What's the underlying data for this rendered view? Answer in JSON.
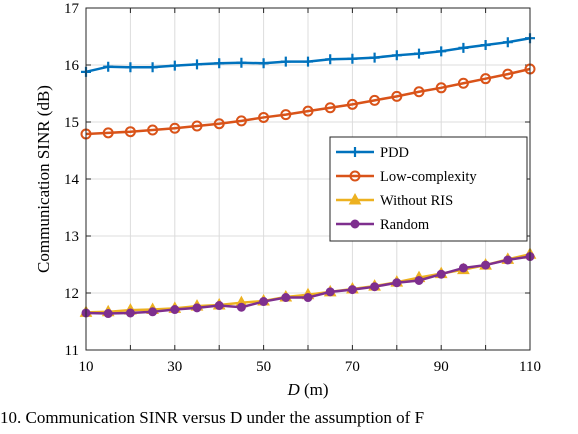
{
  "chart_data": {
    "type": "line",
    "xlabel_var": "D",
    "xlabel_unit": "(m)",
    "ylabel": "Communication SINR (dB)",
    "xlim": [
      10,
      110
    ],
    "ylim": [
      11,
      17
    ],
    "xticks": [
      10,
      30,
      50,
      70,
      90,
      110
    ],
    "yticks": [
      11,
      12,
      13,
      14,
      15,
      16,
      17
    ],
    "grid": true,
    "legend_position": "center-right",
    "x": [
      10,
      15,
      20,
      25,
      30,
      35,
      40,
      45,
      50,
      55,
      60,
      65,
      70,
      75,
      80,
      85,
      90,
      95,
      100,
      105,
      110
    ],
    "series": [
      {
        "name": "PDD",
        "color": "#0072BD",
        "marker": "plus",
        "values": [
          15.88,
          15.97,
          15.96,
          15.96,
          15.99,
          16.01,
          16.03,
          16.04,
          16.03,
          16.06,
          16.06,
          16.1,
          16.11,
          16.13,
          16.17,
          16.2,
          16.24,
          16.3,
          16.35,
          16.4,
          16.47
        ]
      },
      {
        "name": "Low-complexity",
        "color": "#D95319",
        "marker": "circle",
        "values": [
          14.79,
          14.81,
          14.83,
          14.86,
          14.89,
          14.93,
          14.97,
          15.02,
          15.08,
          15.13,
          15.19,
          15.25,
          15.31,
          15.38,
          15.45,
          15.53,
          15.6,
          15.68,
          15.76,
          15.84,
          15.93
        ]
      },
      {
        "name": "Without RIS",
        "color": "#EDB120",
        "marker": "triangle",
        "values": [
          11.66,
          11.67,
          11.7,
          11.71,
          11.73,
          11.77,
          11.79,
          11.83,
          11.86,
          11.93,
          11.97,
          12.02,
          12.07,
          12.12,
          12.19,
          12.27,
          12.34,
          12.41,
          12.49,
          12.59,
          12.68
        ]
      },
      {
        "name": "Random",
        "color": "#7E2F8E",
        "marker": "circle",
        "values": [
          11.65,
          11.64,
          11.65,
          11.67,
          11.71,
          11.74,
          11.78,
          11.75,
          11.85,
          11.92,
          11.92,
          12.02,
          12.06,
          12.11,
          12.18,
          12.22,
          12.33,
          12.44,
          12.49,
          12.58,
          12.64
        ]
      }
    ]
  },
  "caption": "10.  Communication SINR versus D under the assumption of F"
}
